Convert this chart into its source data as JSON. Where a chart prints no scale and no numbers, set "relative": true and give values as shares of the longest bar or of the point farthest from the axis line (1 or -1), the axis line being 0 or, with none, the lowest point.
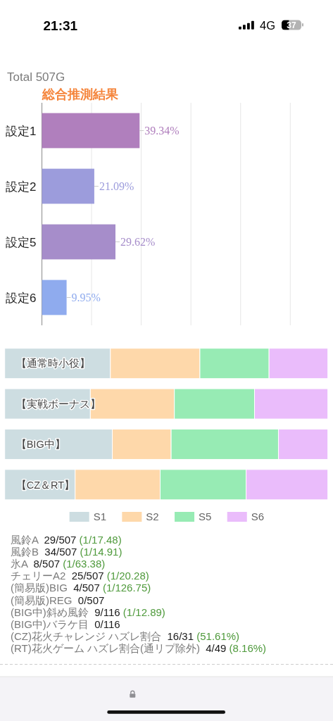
{
  "chart_data": [
    {
      "type": "other",
      "annotations": [
        "21:31",
        "4G",
        "37"
      ]
    },
    {
      "type": "bar",
      "orientation": "horizontal",
      "subtitle": "Total 507G",
      "title": "総合推測結果",
      "categories": [
        "設定1",
        "設定2",
        "設定5",
        "設定6"
      ],
      "values": [
        39.34,
        21.09,
        29.62,
        9.95
      ],
      "colors": [
        "#b07fbd",
        "#9c9cdc",
        "#a68dca",
        "#8fabee"
      ],
      "value_labels": [
        "39.34%",
        "21.09%",
        "29.62%",
        "9.95%"
      ],
      "xlim": [
        0,
        100
      ],
      "xticks": [
        {
          "value": 0,
          "label": null
        },
        {
          "value": 20,
          "label": null
        },
        {
          "value": 40,
          "label": null
        },
        {
          "value": 60,
          "label": null
        },
        {
          "value": 80,
          "label": null
        },
        {
          "value": 100,
          "label": null
        }
      ],
      "grid": "x",
      "tick_labels": "y"
    },
    {
      "type": "bar",
      "orientation": "horizontal",
      "stacked": true,
      "relative": true,
      "categories": [
        "【通常時小役】",
        "【実戦ボーナス】",
        "【BIG中】",
        "【CZ＆RT】"
      ],
      "series": [
        {
          "name": "S1",
          "color": "#cddde1",
          "values": [
            0.327,
            0.265,
            0.333,
            0.218
          ]
        },
        {
          "name": "S2",
          "color": "#fed8aa",
          "values": [
            0.277,
            0.26,
            0.182,
            0.263
          ]
        },
        {
          "name": "S5",
          "color": "#97ebb4",
          "values": [
            0.214,
            0.248,
            0.332,
            0.266
          ]
        },
        {
          "name": "S6",
          "color": "#eabcfb",
          "values": [
            0.182,
            0.227,
            0.153,
            0.253
          ]
        }
      ],
      "legend": "bottom"
    },
    {
      "type": "other",
      "annotations": [
        "風鈴A  29/507 (1/17.48)",
        "風鈴B  34/507 (1/14.91)",
        "氷A  8/507 (1/63.38)",
        "チェリーA2  25/507 (1/20.28)",
        "(簡易版)BIG  4/507 (1/126.75)",
        "(簡易版)REG  0/507",
        "(BIG中)斜め風鈴  9/116 (1/12.89)",
        "(BIG中)バラケ目  0/116",
        "(CZ)花火チャレンジ ハズレ割合  16/31 (51.61%)",
        "(RT)花火ゲーム ハズレ割合(通リプ除外)  4/49 (8.16%)"
      ]
    }
  ]
}
